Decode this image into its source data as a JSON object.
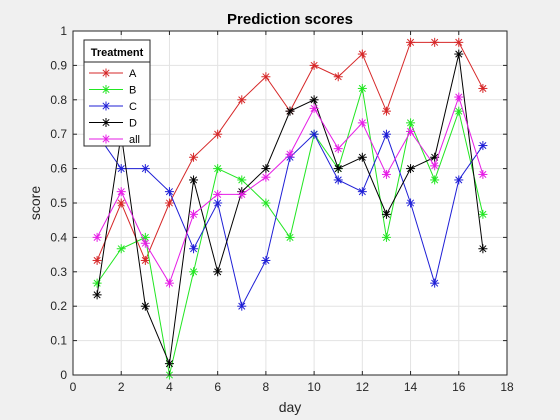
{
  "chart_data": {
    "type": "line",
    "title": "Prediction scores",
    "xlabel": "day",
    "ylabel": "score",
    "xlim": [
      0,
      18
    ],
    "ylim": [
      0,
      1
    ],
    "xticks": [
      0,
      2,
      4,
      6,
      8,
      10,
      12,
      14,
      16,
      18
    ],
    "yticks": [
      0,
      0.1,
      0.2,
      0.3,
      0.4,
      0.5,
      0.6,
      0.7,
      0.8,
      0.9,
      1
    ],
    "grid": true,
    "marker": "asterisk",
    "legend": {
      "title": "Treatment",
      "location": "top-left"
    },
    "x": [
      1,
      2,
      3,
      4,
      5,
      6,
      7,
      8,
      9,
      10,
      11,
      12,
      13,
      14,
      15,
      16,
      17
    ],
    "series": [
      {
        "name": "A",
        "color": "#d62728",
        "values": [
          0.333,
          0.5,
          0.333,
          0.5,
          0.633,
          0.7,
          0.8,
          0.867,
          0.767,
          0.9,
          0.867,
          0.933,
          0.767,
          0.967,
          0.967,
          0.967,
          0.833
        ]
      },
      {
        "name": "B",
        "color": "#22e622",
        "values": [
          0.267,
          0.367,
          0.4,
          0.0,
          0.3,
          0.6,
          0.567,
          0.5,
          0.4,
          0.7,
          0.6,
          0.833,
          0.4,
          0.733,
          0.567,
          0.767,
          0.467
        ]
      },
      {
        "name": "C",
        "color": "#1f1fd6",
        "values": [
          0.7,
          0.6,
          0.6,
          0.533,
          0.367,
          0.5,
          0.2,
          0.333,
          0.633,
          0.7,
          0.567,
          0.533,
          0.7,
          0.5,
          0.267,
          0.567,
          0.667
        ]
      },
      {
        "name": "D",
        "color": "#000000",
        "values": [
          0.233,
          0.7,
          0.2,
          0.033,
          0.567,
          0.3,
          0.533,
          0.6,
          0.767,
          0.8,
          0.6,
          0.633,
          0.467,
          0.6,
          0.633,
          0.933,
          0.367
        ]
      },
      {
        "name": "all",
        "color": "#e61ee6",
        "values": [
          0.4,
          0.533,
          0.383,
          0.267,
          0.467,
          0.525,
          0.525,
          0.575,
          0.642,
          0.775,
          0.658,
          0.733,
          0.583,
          0.708,
          0.608,
          0.808,
          0.583
        ]
      }
    ]
  }
}
